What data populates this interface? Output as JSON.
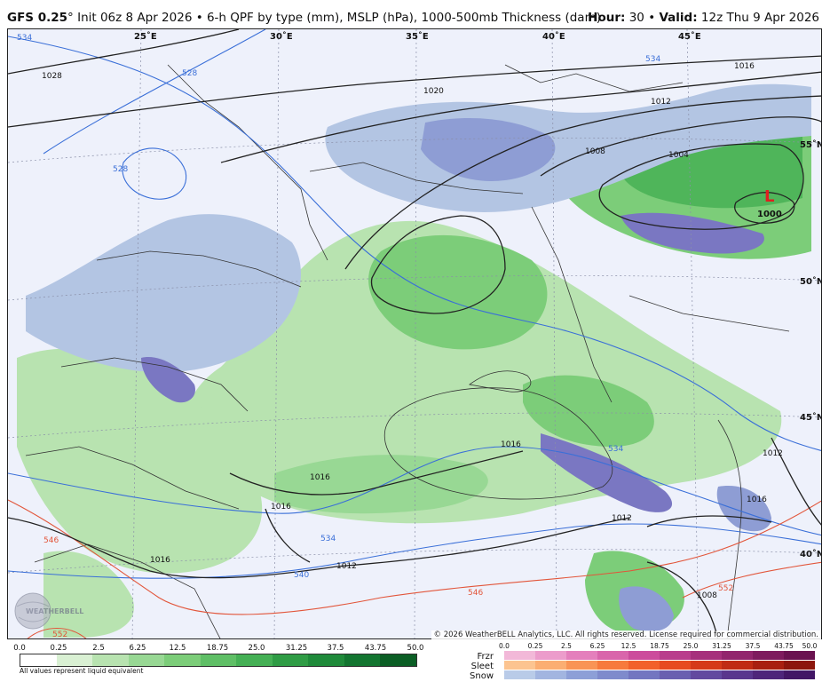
{
  "header": {
    "model": "GFS 0.25",
    "degree": "°",
    "init_text": "Init 06z 8 Apr 2026 • 6-h QPF by type (mm), MSLP (hPa), 1000-500mb Thickness (dam)",
    "hour_label": "Hour:",
    "hour_value": "30",
    "sep": "•",
    "valid_label": "Valid:",
    "valid_value": "12z Thu 9 Apr 2026"
  },
  "map": {
    "lon_labels": [
      "25˚E",
      "30˚E",
      "35˚E",
      "40˚E",
      "45˚E"
    ],
    "lat_labels": [
      "55˚N",
      "50˚N",
      "45˚N",
      "40˚N"
    ],
    "isobar_labels": [
      "1028",
      "1020",
      "1016",
      "1012",
      "1008",
      "1004",
      "1000",
      "1016",
      "1016",
      "1016",
      "1012",
      "1016",
      "1012",
      "1016",
      "1008",
      "1012"
    ],
    "thickness_labels": [
      "534",
      "528",
      "528",
      "534",
      "534",
      "534",
      "540",
      "546",
      "546",
      "552",
      "552"
    ],
    "low_symbol": "L",
    "low_value": "1000",
    "colors": {
      "background": "#eef1fb",
      "rain_light": "#b8e3b0",
      "rain_mid": "#7ccd79",
      "rain_heavy": "#4fb55a",
      "snow_light": "#b3c5e3",
      "snow_mid": "#8e9dd4",
      "snow_heavy": "#7a77c2",
      "isobar": "#222222",
      "thickness_cold": "#3a6fd8",
      "thickness_warm": "#e2553a",
      "low": "#e02020"
    },
    "watermark": "WEATHERBELL",
    "copyright": "© 2026 WeatherBELL Analytics, LLC. All rights reserved. License required for commercial distribution."
  },
  "legend": {
    "qpf_ticks": [
      "0.0",
      "0.25",
      "2.5",
      "6.25",
      "12.5",
      "18.75",
      "25.0",
      "31.25",
      "37.5",
      "43.75",
      "50.0"
    ],
    "qpf_colors": [
      "#ffffff",
      "#d9f0d3",
      "#b8e3b0",
      "#98d894",
      "#7ccd79",
      "#5fbf66",
      "#45b055",
      "#2f9c45",
      "#1f8a3a",
      "#137530",
      "#0b5e25"
    ],
    "qpf_note": "All values represent liquid equivalent",
    "type_labels": [
      "Frzr",
      "Sleet",
      "Snow"
    ],
    "type_ticks": [
      "0.0",
      "0.25",
      "2.5",
      "6.25",
      "12.5",
      "18.75",
      "25.0",
      "31.25",
      "37.5",
      "43.75",
      "50.0"
    ],
    "frzr_colors": [
      "#f2b8d8",
      "#ec9ccb",
      "#e47fbc",
      "#d965ab",
      "#cc4c9c",
      "#b93d8c",
      "#a6307c",
      "#92256d",
      "#7e1b5e",
      "#6a1250"
    ],
    "sleet_colors": [
      "#fcc490",
      "#fbae72",
      "#f99455",
      "#f77a3c",
      "#f2612a",
      "#e74b1f",
      "#d53a18",
      "#c02c14",
      "#a82010",
      "#8c160c"
    ],
    "snow_colors": [
      "#b9cbe8",
      "#a2b5e0",
      "#8d9fd7",
      "#7f8bcc",
      "#7376c0",
      "#6a5fb0",
      "#62499f",
      "#59368d",
      "#4e257a",
      "#421665"
    ]
  }
}
